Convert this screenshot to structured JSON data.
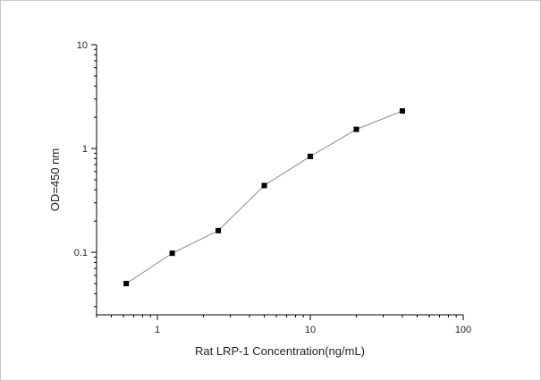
{
  "chart_data": {
    "type": "line",
    "title": "",
    "xlabel": "Rat LRP-1 Concentration(ng/mL)",
    "ylabel": "OD=450 nm",
    "x_scale": "log",
    "y_scale": "log",
    "xlim": [
      0.4,
      100
    ],
    "ylim": [
      0.025,
      10
    ],
    "x_ticks": [
      1,
      10,
      100
    ],
    "x_tick_labels": [
      "1",
      "10",
      "100"
    ],
    "y_ticks": [
      0.1,
      1,
      10
    ],
    "y_tick_labels": [
      "0.1",
      "1",
      "10"
    ],
    "grid": false,
    "legend": "none",
    "series": [
      {
        "x": [
          0.625,
          1.25,
          2.5,
          5,
          10,
          20,
          40
        ],
        "y": [
          0.05,
          0.098,
          0.162,
          0.44,
          0.84,
          1.53,
          2.3
        ],
        "marker": "square",
        "color": "#000000",
        "line_color": "#8a8a8a"
      }
    ]
  }
}
